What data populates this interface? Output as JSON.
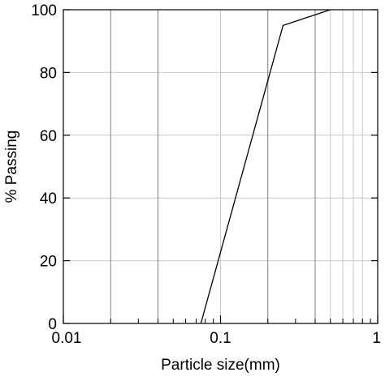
{
  "chart_data": {
    "type": "line",
    "xlabel": "Particle size(mm)",
    "ylabel": "% Passing",
    "xscale": "log",
    "xlim": [
      0.01,
      1
    ],
    "ylim": [
      0,
      100
    ],
    "x_ticks": [
      {
        "value": 0.01,
        "label": "0.01"
      },
      {
        "value": 0.1,
        "label": "0.1"
      },
      {
        "value": 1,
        "label": "1"
      }
    ],
    "y_ticks": [
      {
        "value": 0,
        "label": "0"
      },
      {
        "value": 20,
        "label": "20"
      },
      {
        "value": 40,
        "label": "40"
      },
      {
        "value": 60,
        "label": "60"
      },
      {
        "value": 80,
        "label": "80"
      },
      {
        "value": 100,
        "label": "100"
      }
    ],
    "grid": true,
    "grid_x_values": [
      0.02,
      0.04,
      0.1,
      0.2,
      0.4,
      0.5,
      0.6,
      0.7,
      0.8
    ],
    "grid_y_values": [
      20,
      40,
      60,
      80
    ],
    "series": [
      {
        "x": [
          0.075,
          0.25,
          0.5
        ],
        "y": [
          0,
          95,
          100
        ]
      }
    ],
    "colors": {
      "line": "#000000",
      "axis": "#000000",
      "grid_major": "#7f7f7f",
      "grid_minor": "#c8c8c8"
    }
  }
}
